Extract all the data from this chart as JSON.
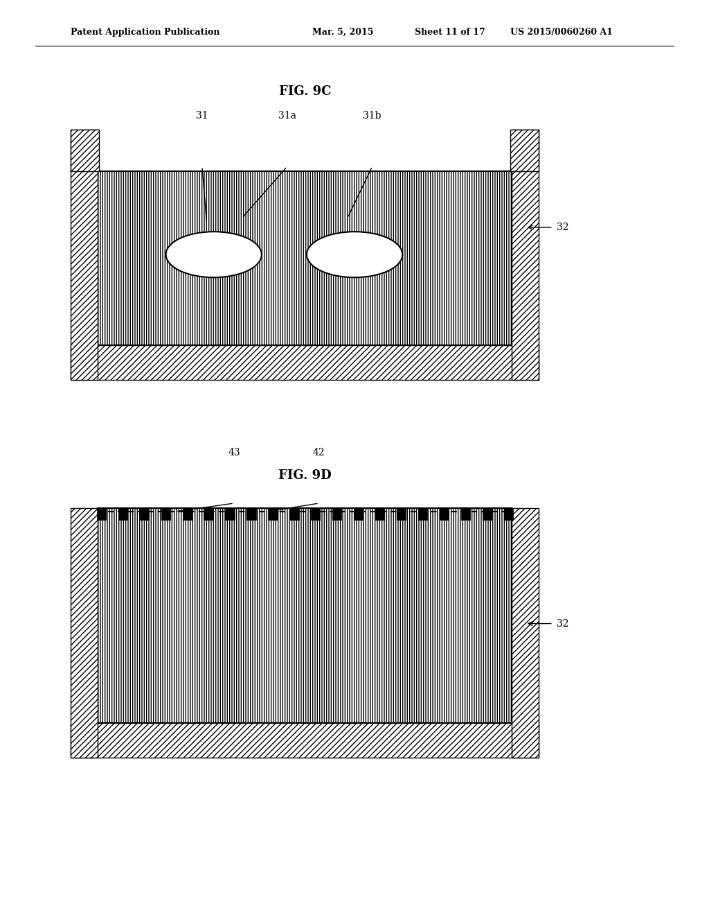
{
  "bg_color": "#ffffff",
  "header_text": "Patent Application Publication",
  "header_date": "Mar. 5, 2015",
  "header_sheet": "Sheet 11 of 17",
  "header_patent": "US 2015/0060260 A1",
  "fig1_title": "FIG. 9C",
  "fig2_title": "FIG. 9D"
}
